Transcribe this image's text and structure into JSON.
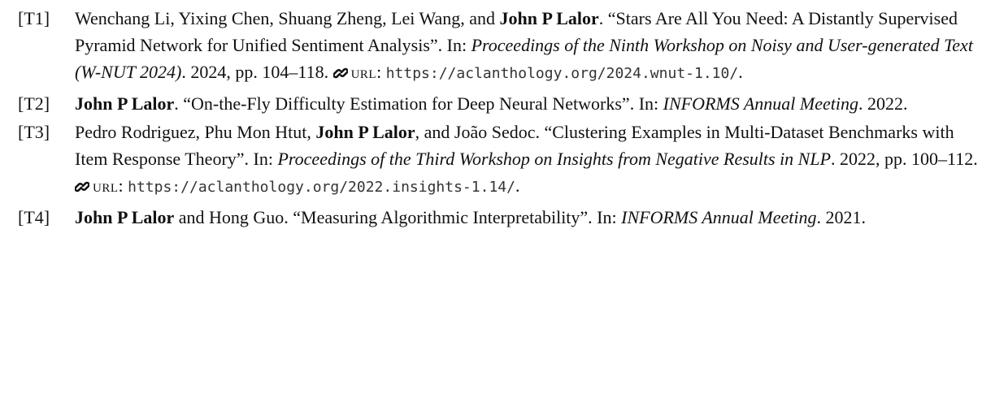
{
  "entries": [
    {
      "label": "[T1]",
      "segments": [
        {
          "text": "Wenchang Li, Yixing Chen, Shuang Zheng, Lei Wang, and ",
          "style": "plain"
        },
        {
          "text": "John P Lalor",
          "style": "bold"
        },
        {
          "text": ". “Stars Are All You Need: A Distantly Supervised Pyramid Network for Unified Sentiment Analysis”. In: ",
          "style": "plain"
        },
        {
          "text": "Proceedings of the Ninth Workshop on Noisy and User-generated Text (W-NUT 2024)",
          "style": "italic"
        },
        {
          "text": ". 2024, pp. 104–118. ",
          "style": "plain"
        },
        {
          "text": "URL",
          "style": "urllabel"
        },
        {
          "text": ": ",
          "style": "plain"
        },
        {
          "text": "https://aclanthology.org/2024.wnut-1.10/",
          "style": "mono"
        },
        {
          "text": ".",
          "style": "plain"
        }
      ]
    },
    {
      "label": "[T2]",
      "segments": [
        {
          "text": "John P Lalor",
          "style": "bold"
        },
        {
          "text": ". “On-the-Fly Difficulty Estimation for Deep Neural Networks”. In: ",
          "style": "plain"
        },
        {
          "text": "INFORMS Annual Meeting",
          "style": "italic"
        },
        {
          "text": ". 2022.",
          "style": "plain"
        }
      ]
    },
    {
      "label": "[T3]",
      "segments": [
        {
          "text": "Pedro Rodriguez, Phu Mon Htut, ",
          "style": "plain"
        },
        {
          "text": "John P Lalor",
          "style": "bold"
        },
        {
          "text": ", and João Sedoc. “Clustering Examples in Multi-Dataset Benchmarks with Item Response Theory”. In: ",
          "style": "plain"
        },
        {
          "text": "Proceedings of the Third Workshop on Insights from Negative Results in NLP",
          "style": "italic"
        },
        {
          "text": ". 2022, pp. 100–112. ",
          "style": "plain"
        },
        {
          "text": "URL",
          "style": "urllabel"
        },
        {
          "text": ": ",
          "style": "plain"
        },
        {
          "text": "https://aclanthology.org/2022.insights-1.14/",
          "style": "mono"
        },
        {
          "text": ".",
          "style": "plain"
        }
      ]
    },
    {
      "label": "[T4]",
      "segments": [
        {
          "text": "John P Lalor",
          "style": "bold"
        },
        {
          "text": " and Hong Guo. “Measuring Algorithmic Interpretability”. In: ",
          "style": "plain"
        },
        {
          "text": "INFORMS Annual Meeting",
          "style": "italic"
        },
        {
          "text": ". 2021.",
          "style": "plain"
        }
      ]
    }
  ]
}
